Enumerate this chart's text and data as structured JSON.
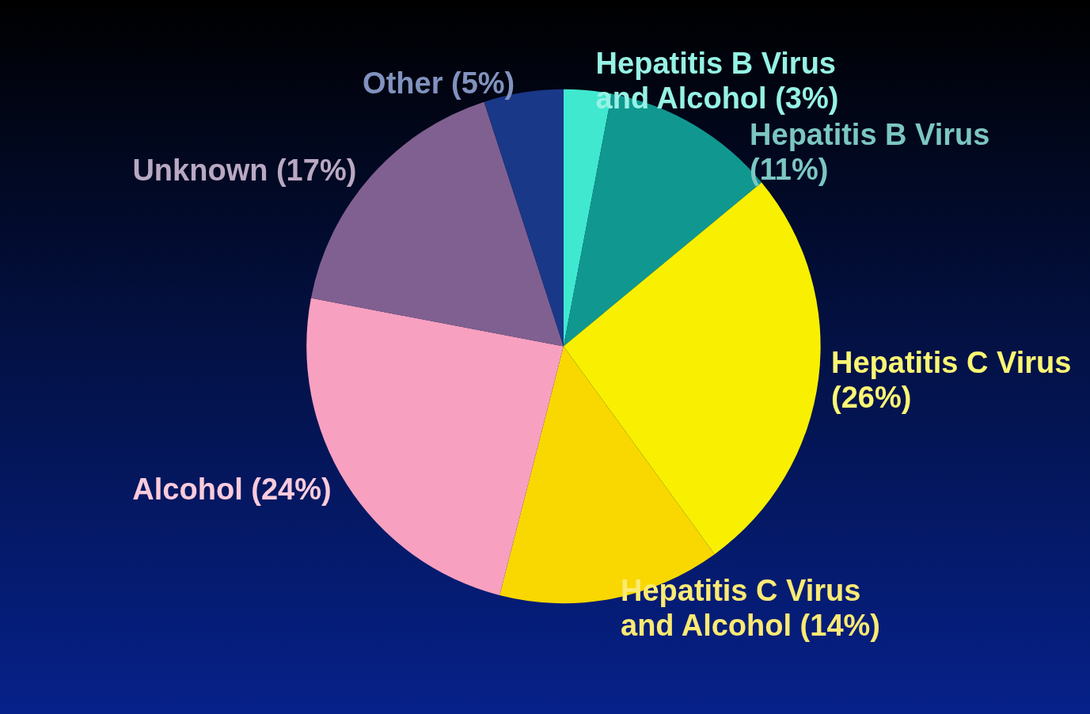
{
  "chart_data": {
    "type": "pie",
    "categories": [
      "Hepatitis B Virus and Alcohol (3%)",
      "Hepatitis B Virus (11%)",
      "Hepatitis C Virus (26%)",
      "Hepatitis C Virus and Alcohol (14%)",
      "Alcohol (24%)",
      "Unknown (17%)",
      "Other (5%)"
    ],
    "values": [
      3,
      11,
      26,
      14,
      24,
      17,
      5
    ],
    "colors": [
      "#40e8d0",
      "#109890",
      "#f8f000",
      "#f8d800",
      "#f8a0c0",
      "#806090",
      "#1a3888"
    ]
  }
}
